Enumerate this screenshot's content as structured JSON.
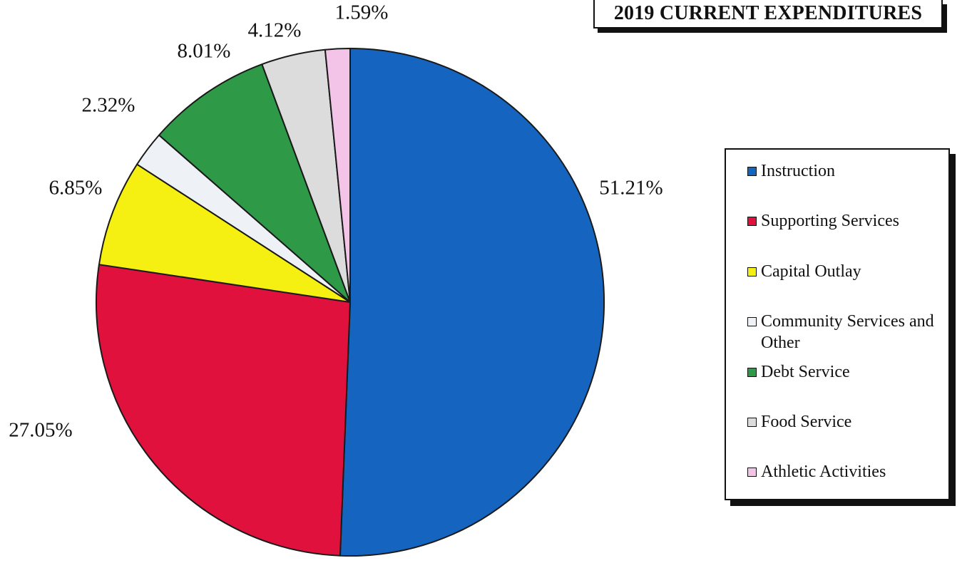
{
  "chart_data": {
    "type": "pie",
    "title": "2019 CURRENT EXPENDITURES",
    "categories": [
      "Instruction",
      "Supporting Services",
      "Capital Outlay",
      "Community Services and Other",
      "Debt Service",
      "Food Service",
      "Athletic Activities"
    ],
    "values": [
      51.21,
      27.05,
      6.85,
      2.32,
      8.01,
      4.12,
      1.59
    ],
    "value_labels": [
      "51.21%",
      "27.05%",
      "6.85%",
      "2.32%",
      "8.01%",
      "4.12%",
      "1.59%"
    ],
    "colors": [
      "#1565c0",
      "#e0123d",
      "#f5ef12",
      "#eef2f7",
      "#2e9a47",
      "#dcdcdc",
      "#f3c3e8"
    ],
    "start_angle": "12 o'clock",
    "direction": "clockwise",
    "legend_placement": "right"
  }
}
